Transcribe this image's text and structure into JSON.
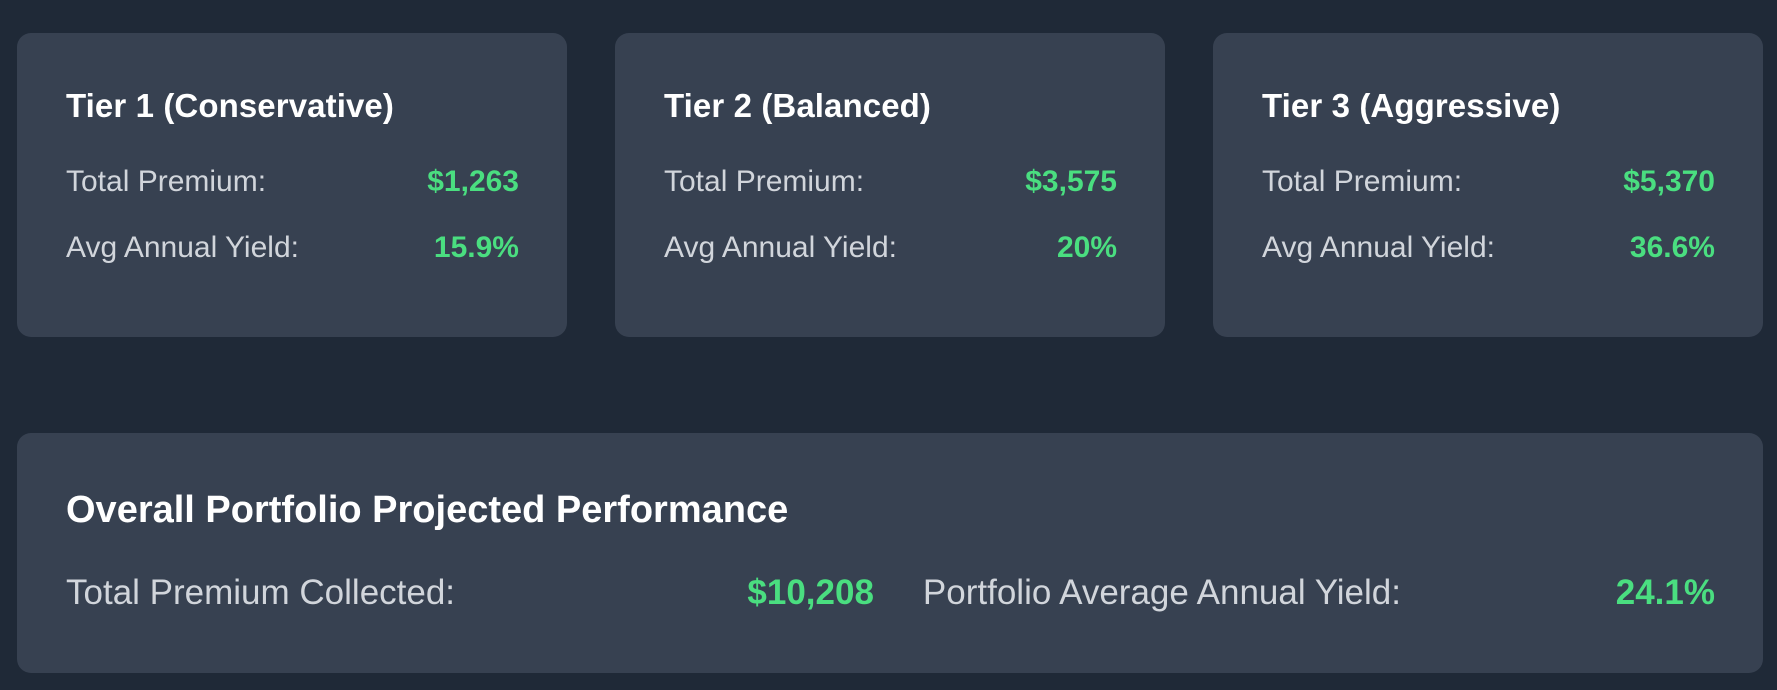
{
  "tiers": [
    {
      "title": "Tier 1 (Conservative)",
      "premium_label": "Total Premium:",
      "premium_value": "$1,263",
      "yield_label": "Avg Annual Yield:",
      "yield_value": "15.9%"
    },
    {
      "title": "Tier 2 (Balanced)",
      "premium_label": "Total Premium:",
      "premium_value": "$3,575",
      "yield_label": "Avg Annual Yield:",
      "yield_value": "20%"
    },
    {
      "title": "Tier 3 (Aggressive)",
      "premium_label": "Total Premium:",
      "premium_value": "$5,370",
      "yield_label": "Avg Annual Yield:",
      "yield_value": "36.6%"
    }
  ],
  "overall": {
    "title": "Overall Portfolio Projected Performance",
    "total_premium_label": "Total Premium Collected:",
    "total_premium_value": "$10,208",
    "avg_yield_label": "Portfolio Average Annual Yield:",
    "avg_yield_value": "24.1%"
  },
  "colors": {
    "background": "#1f2937",
    "card": "#374151",
    "title_text": "#ffffff",
    "label_text": "#d1d5db",
    "value_positive": "#4ade80"
  }
}
